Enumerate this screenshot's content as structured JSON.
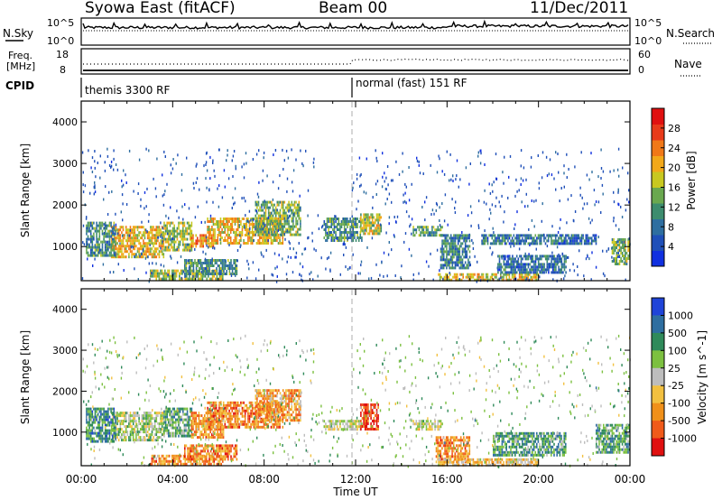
{
  "header": {
    "station": "Syowa East (fitACF)",
    "beam": "Beam 00",
    "date": "11/Dec/2011"
  },
  "noise_panel": {
    "left_label": "N.Sky",
    "right_label": "N.Search",
    "left_ticks": [
      "10^5",
      "10^0"
    ],
    "right_ticks": [
      "10^5",
      "10^0"
    ]
  },
  "freq_panel": {
    "left_label_1": "Freq.",
    "left_label_2": "[MHz]",
    "right_label": "Nave",
    "left_ticks": [
      "18",
      "8"
    ],
    "right_ticks": [
      "60",
      "0"
    ]
  },
  "cpid": {
    "label": "CPID",
    "modes": [
      {
        "name": "themis 3300 RF",
        "start_hour": 0
      },
      {
        "name": "normal (fast) 151 RF",
        "start_hour": 12
      }
    ]
  },
  "x_axis": {
    "title": "Time UT",
    "ticks": [
      "00:00",
      "04:00",
      "08:00",
      "12:00",
      "16:00",
      "20:00",
      "00:00"
    ],
    "range_hours": [
      0,
      24
    ]
  },
  "chart_data": [
    {
      "type": "heatmap",
      "ylabel": "Slant Range [km]",
      "ylim": [
        180,
        4500
      ],
      "y_ticks": [
        1000,
        2000,
        3000,
        4000
      ],
      "colorbar": {
        "title": "Power [dB]",
        "range": [
          0,
          32
        ],
        "ticks": [
          "4",
          "8",
          "12",
          "16",
          "20",
          "24",
          "28"
        ],
        "colors": [
          "#1030e0",
          "#1f4fb8",
          "#2e6ea0",
          "#3d8c6e",
          "#6aa84f",
          "#c8c820",
          "#f2a81a",
          "#f07818",
          "#e83a1a",
          "#e01010"
        ]
      },
      "regions": [
        {
          "t": [
            1.3,
            3.6
          ],
          "r": [
            780,
            1500
          ],
          "level": 0.62
        },
        {
          "t": [
            0.2,
            1.5
          ],
          "r": [
            800,
            1600
          ],
          "level": 0.35
        },
        {
          "t": [
            3.6,
            4.8
          ],
          "r": [
            900,
            1600
          ],
          "level": 0.5
        },
        {
          "t": [
            4.8,
            5.8
          ],
          "r": [
            1000,
            1300
          ],
          "level": 0.7
        },
        {
          "t": [
            5.5,
            8.8
          ],
          "r": [
            1100,
            1700
          ],
          "level": 0.6
        },
        {
          "t": [
            7.6,
            9.6
          ],
          "r": [
            1300,
            2100
          ],
          "level": 0.45
        },
        {
          "t": [
            3.0,
            6.2
          ],
          "r": [
            200,
            450
          ],
          "level": 0.5
        },
        {
          "t": [
            4.5,
            6.8
          ],
          "r": [
            350,
            700
          ],
          "level": 0.35
        },
        {
          "t": [
            10.6,
            12.3
          ],
          "r": [
            1150,
            1700
          ],
          "level": 0.35
        },
        {
          "t": [
            12.2,
            13.1
          ],
          "r": [
            1300,
            1800
          ],
          "level": 0.55
        },
        {
          "t": [
            14.5,
            15.8
          ],
          "r": [
            1250,
            1500
          ],
          "level": 0.4
        },
        {
          "t": [
            15.7,
            17.0
          ],
          "r": [
            500,
            1300
          ],
          "level": 0.3
        },
        {
          "t": [
            15.6,
            20.0
          ],
          "r": [
            200,
            360
          ],
          "level": 0.6
        },
        {
          "t": [
            17.5,
            22.5
          ],
          "r": [
            1050,
            1300
          ],
          "level": 0.25
        },
        {
          "t": [
            18.2,
            21.2
          ],
          "r": [
            400,
            800
          ],
          "level": 0.25
        },
        {
          "t": [
            23.2,
            24.0
          ],
          "r": [
            600,
            1200
          ],
          "level": 0.45
        }
      ]
    },
    {
      "type": "heatmap",
      "ylabel": "Slant Range [km]",
      "ylim": [
        180,
        4500
      ],
      "y_ticks": [
        1000,
        2000,
        3000,
        4000
      ],
      "colorbar": {
        "title": "Velocity [m s^-1]",
        "ticks": [
          "1000",
          "500",
          "100",
          "25",
          "-25",
          "-100",
          "-500",
          "-1000"
        ],
        "colors": [
          "#1f44d8",
          "#2e6ea0",
          "#2f8a5a",
          "#7cc040",
          "#bdbdbd",
          "#f2c040",
          "#f0901a",
          "#f05a1a",
          "#e01010"
        ]
      },
      "regions": [
        {
          "t": [
            1.3,
            3.6
          ],
          "r": [
            780,
            1500
          ],
          "level": 0.45
        },
        {
          "t": [
            0.2,
            1.5
          ],
          "r": [
            800,
            1600
          ],
          "level": 0.25
        },
        {
          "t": [
            3.6,
            4.8
          ],
          "r": [
            900,
            1600
          ],
          "level": 0.35
        },
        {
          "t": [
            4.8,
            6.2
          ],
          "r": [
            900,
            1500
          ],
          "level": 0.72
        },
        {
          "t": [
            5.5,
            8.8
          ],
          "r": [
            1100,
            1750
          ],
          "level": 0.75
        },
        {
          "t": [
            7.6,
            9.6
          ],
          "r": [
            1300,
            2050
          ],
          "level": 0.7
        },
        {
          "t": [
            3.0,
            6.2
          ],
          "r": [
            200,
            450
          ],
          "level": 0.72
        },
        {
          "t": [
            4.5,
            6.8
          ],
          "r": [
            350,
            700
          ],
          "level": 0.75
        },
        {
          "t": [
            10.6,
            12.3
          ],
          "r": [
            1100,
            1300
          ],
          "level": 0.5
        },
        {
          "t": [
            12.2,
            13.0
          ],
          "r": [
            1100,
            1700
          ],
          "level": 0.88
        },
        {
          "t": [
            14.5,
            15.8
          ],
          "r": [
            1100,
            1300
          ],
          "level": 0.5
        },
        {
          "t": [
            15.5,
            17.0
          ],
          "r": [
            300,
            900
          ],
          "level": 0.75
        },
        {
          "t": [
            15.6,
            20.0
          ],
          "r": [
            200,
            360
          ],
          "level": 0.6
        },
        {
          "t": [
            18.0,
            21.2
          ],
          "r": [
            450,
            1000
          ],
          "level": 0.3
        },
        {
          "t": [
            22.5,
            24.0
          ],
          "r": [
            500,
            1200
          ],
          "level": 0.3
        }
      ]
    }
  ]
}
